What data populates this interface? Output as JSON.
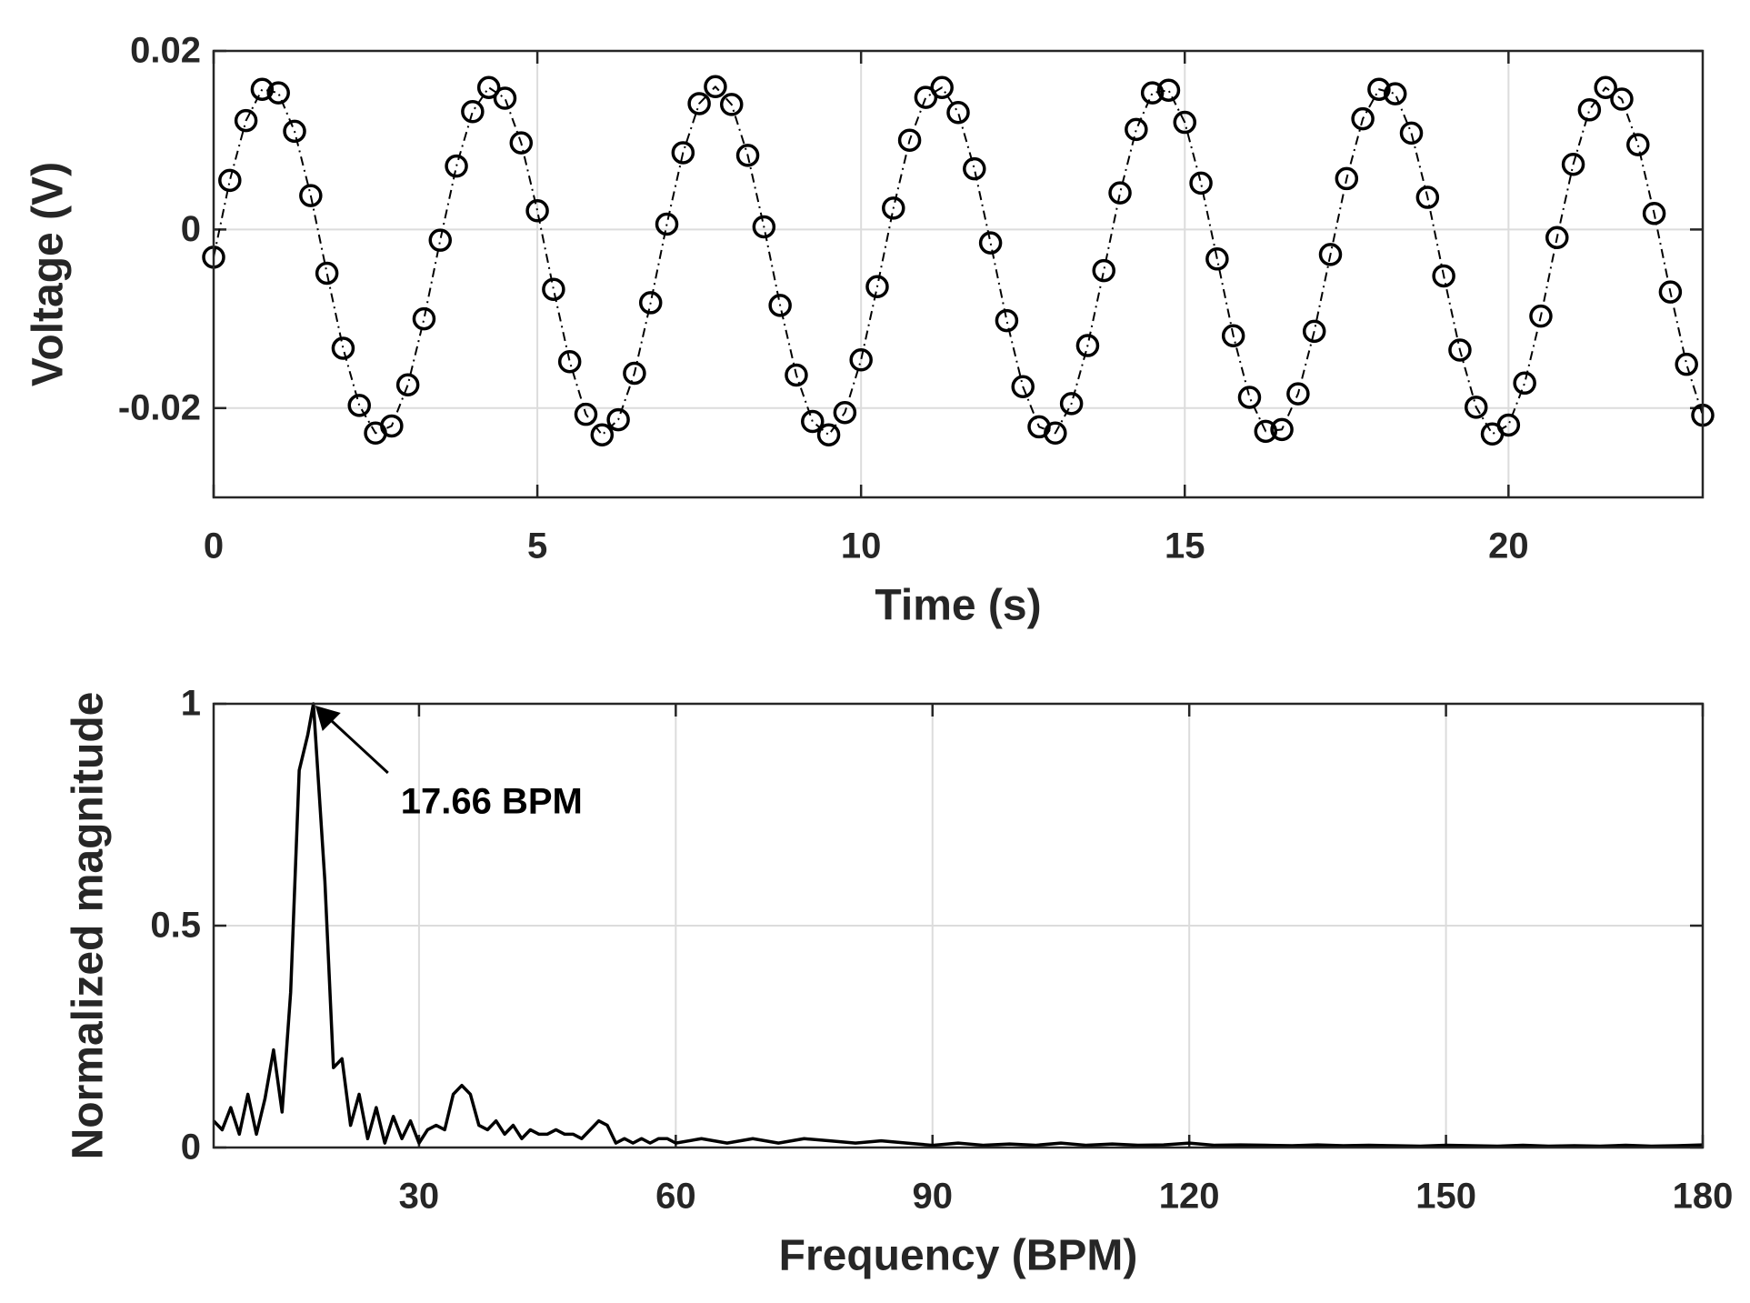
{
  "chart_data": [
    {
      "type": "line",
      "marker": "o",
      "linestyle": "-.",
      "color": "#000000",
      "grid": true,
      "xlabel": "Time (s)",
      "ylabel": "Voltage (V)",
      "xlim": [
        0,
        23
      ],
      "xticks": [
        0,
        5,
        10,
        15,
        20
      ],
      "ylim": [
        -0.03,
        0.02
      ],
      "yticks": [
        -0.02,
        0,
        0.02
      ],
      "x": [
        0,
        0.25,
        0.5,
        0.75,
        1,
        1.25,
        1.5,
        1.75,
        2,
        2.25,
        2.5,
        2.75,
        3,
        3.25,
        3.5,
        3.75,
        4,
        4.25,
        4.5,
        4.75,
        5,
        5.25,
        5.5,
        5.75,
        6,
        6.25,
        6.5,
        6.75,
        7,
        7.25,
        7.5,
        7.75,
        8,
        8.25,
        8.5,
        8.75,
        9,
        9.25,
        9.5,
        9.75,
        10,
        10.25,
        10.5,
        10.75,
        11,
        11.25,
        11.5,
        11.75,
        12,
        12.25,
        12.5,
        12.75,
        13,
        13.25,
        13.5,
        13.75,
        14,
        14.25,
        14.5,
        14.75,
        15,
        15.25,
        15.5,
        15.75,
        16,
        16.25,
        16.5,
        16.75,
        17,
        17.25,
        17.5,
        17.75,
        18,
        18.25,
        18.5,
        18.75,
        19,
        19.25,
        19.5,
        19.75,
        20,
        20.25,
        20.5,
        20.75,
        21,
        21.25,
        21.5,
        21.75,
        22,
        22.25,
        22.5,
        22.75,
        23
      ],
      "values": [
        -0.0031,
        0.0055,
        0.0122,
        0.0157,
        0.0153,
        0.011,
        0.0038,
        -0.0049,
        -0.0133,
        -0.0197,
        -0.0228,
        -0.022,
        -0.0174,
        -0.01,
        -0.0012,
        0.0071,
        0.0132,
        0.0159,
        0.0147,
        0.0097,
        0.0021,
        -0.0067,
        -0.0148,
        -0.0207,
        -0.023,
        -0.0213,
        -0.0161,
        -0.0082,
        0.0006,
        0.0086,
        0.0141,
        0.016,
        0.014,
        0.0083,
        0.0003,
        -0.0085,
        -0.0163,
        -0.0215,
        -0.023,
        -0.0205,
        -0.0146,
        -0.0064,
        0.0024,
        0.01,
        0.0148,
        0.0159,
        0.0131,
        0.0068,
        -0.0015,
        -0.0102,
        -0.0176,
        -0.0221,
        -0.0228,
        -0.0195,
        -0.013,
        -0.0046,
        0.0041,
        0.0112,
        0.0153,
        0.0156,
        0.012,
        0.0052,
        -0.0033,
        -0.0119,
        -0.0188,
        -0.0226,
        -0.0224,
        -0.0184,
        -0.0114,
        -0.0028,
        0.0057,
        0.0124,
        0.0157,
        0.0152,
        0.0108,
        0.0036,
        -0.0052,
        -0.0135,
        -0.0199,
        -0.0229,
        -0.0219,
        -0.0172,
        -0.0097,
        -0.0009,
        0.0073,
        0.0134,
        0.0159,
        0.0146,
        0.0095,
        0.0018,
        -0.007,
        -0.0151,
        -0.0208
      ]
    },
    {
      "type": "line",
      "color": "#000000",
      "grid": true,
      "xlabel": "Frequency (BPM)",
      "ylabel": "Normalized magnitude",
      "xlim": [
        6,
        180
      ],
      "xticks": [
        30,
        60,
        90,
        120,
        150,
        180
      ],
      "ylim": [
        0,
        1
      ],
      "yticks": [
        0,
        0.5,
        1
      ],
      "annotation": {
        "text": "17.66 BPM",
        "x": 17.66,
        "y": 1
      },
      "x": [
        6,
        7,
        8,
        9,
        10,
        11,
        12,
        13,
        14,
        15,
        16,
        17,
        17.66,
        19,
        20,
        21,
        22,
        23,
        24,
        25,
        26,
        27,
        28,
        29,
        30,
        31,
        32,
        33,
        34,
        35,
        36,
        37,
        38,
        39,
        40,
        41,
        42,
        43,
        44,
        45,
        46,
        47,
        48,
        49,
        50,
        51,
        52,
        53,
        54,
        55,
        56,
        57,
        58,
        59,
        60,
        63,
        66,
        69,
        72,
        75,
        78,
        81,
        84,
        87,
        90,
        93,
        96,
        99,
        102,
        105,
        108,
        111,
        114,
        117,
        120,
        123,
        126,
        129,
        132,
        135,
        138,
        141,
        144,
        147,
        150,
        153,
        156,
        159,
        162,
        165,
        168,
        171,
        174,
        177,
        180
      ],
      "values": [
        0.06,
        0.04,
        0.09,
        0.03,
        0.12,
        0.03,
        0.11,
        0.22,
        0.08,
        0.35,
        0.85,
        0.93,
        1,
        0.6,
        0.18,
        0.2,
        0.05,
        0.12,
        0.02,
        0.09,
        0.01,
        0.07,
        0.02,
        0.06,
        0.01,
        0.04,
        0.05,
        0.04,
        0.12,
        0.14,
        0.12,
        0.05,
        0.04,
        0.06,
        0.03,
        0.05,
        0.02,
        0.04,
        0.03,
        0.03,
        0.04,
        0.03,
        0.03,
        0.02,
        0.04,
        0.06,
        0.05,
        0.01,
        0.02,
        0.01,
        0.02,
        0.01,
        0.02,
        0.02,
        0.01,
        0.02,
        0.01,
        0.02,
        0.01,
        0.02,
        0.015,
        0.01,
        0.015,
        0.01,
        0.005,
        0.01,
        0.005,
        0.008,
        0.005,
        0.01,
        0.005,
        0.008,
        0.005,
        0.006,
        0.01,
        0.005,
        0.006,
        0.005,
        0.004,
        0.006,
        0.004,
        0.005,
        0.004,
        0.003,
        0.005,
        0.004,
        0.003,
        0.005,
        0.003,
        0.004,
        0.003,
        0.005,
        0.003,
        0.004,
        0.006
      ]
    }
  ]
}
